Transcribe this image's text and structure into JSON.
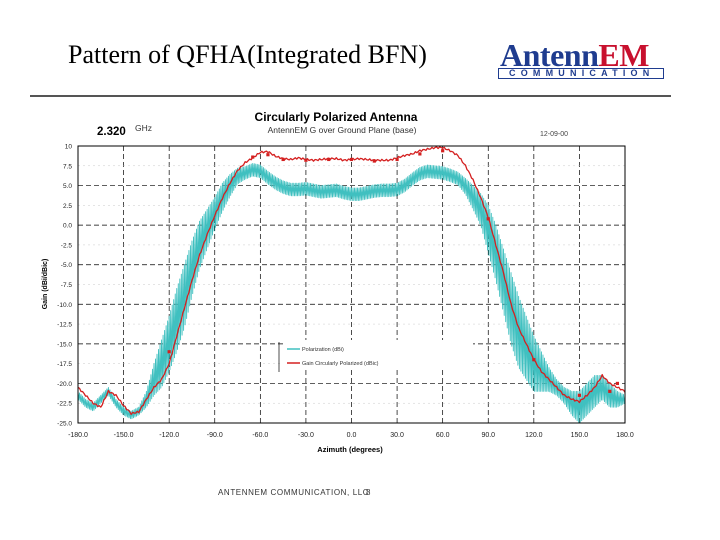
{
  "slide": {
    "title": "Pattern of QFHA(Integrated BFN)",
    "logo_text_a": "Antenn",
    "logo_text_b": "EM",
    "logo_sub": "COMMUNICATION",
    "footer_org": "ANTENNEM COMMUNICATION, LLC",
    "footer_page": "8"
  },
  "chart_data": {
    "type": "line",
    "title": "Circularly Polarized Antenna",
    "subtitle": "AntennEM G over Ground Plane (base)",
    "frequency_value": "2.320",
    "frequency_unit": "GHz",
    "date_label": "12-09-00",
    "xlabel": "Azimuth (degrees)",
    "ylabel": "Gain (dBi/dBic)",
    "xlim": [
      -180,
      180
    ],
    "ylim": [
      -25,
      10
    ],
    "grid": true,
    "x_ticks": [
      "-180.0",
      "-150.0",
      "-120.0",
      "-90.0",
      "-60.0",
      "-30.0",
      "0.0",
      "30.0",
      "60.0",
      "90.0",
      "120.0",
      "150.0",
      "180.0"
    ],
    "y_ticks": [
      "10",
      "7.5",
      "5.0",
      "2.5",
      "0.0",
      "-2.5",
      "-5.0",
      "-7.5",
      "-10.0",
      "-12.5",
      "-15.0",
      "-17.5",
      "-20.0",
      "-22.5",
      "-25.0"
    ],
    "legend_position": "center-right",
    "series": [
      {
        "name": "Polarization (dBi)",
        "color": "#40c0c0",
        "style": "oscillating",
        "x": [
          -180,
          -175,
          -170,
          -165,
          -160,
          -155,
          -150,
          -145,
          -140,
          -135,
          -130,
          -125,
          -120,
          -115,
          -110,
          -105,
          -100,
          -95,
          -90,
          -85,
          -80,
          -75,
          -70,
          -65,
          -60,
          -55,
          -50,
          -45,
          -40,
          -35,
          -30,
          -25,
          -20,
          -15,
          -10,
          -5,
          0,
          5,
          10,
          15,
          20,
          25,
          30,
          35,
          40,
          45,
          50,
          55,
          60,
          65,
          70,
          75,
          80,
          85,
          90,
          95,
          100,
          105,
          110,
          115,
          120,
          125,
          130,
          135,
          140,
          145,
          150,
          155,
          160,
          165,
          170,
          175,
          180
        ],
        "y": [
          -21.5,
          -22.5,
          -23.0,
          -22.0,
          -21.0,
          -22.5,
          -23.5,
          -24.0,
          -23.5,
          -22.0,
          -19.5,
          -17.5,
          -15.0,
          -12.0,
          -9.0,
          -5.5,
          -2.5,
          -0.5,
          1.5,
          3.5,
          5.0,
          6.2,
          6.6,
          7.0,
          6.8,
          6.0,
          5.3,
          4.8,
          4.5,
          4.5,
          4.6,
          4.4,
          4.2,
          4.3,
          4.4,
          4.1,
          3.9,
          3.9,
          4.1,
          4.3,
          4.4,
          4.4,
          4.5,
          5.0,
          5.8,
          6.5,
          6.8,
          6.7,
          6.6,
          6.3,
          5.9,
          4.9,
          3.5,
          2.0,
          -0.5,
          -3.5,
          -7.0,
          -10.5,
          -13.5,
          -15.5,
          -17.5,
          -18.5,
          -19.5,
          -20.5,
          -21.5,
          -22.5,
          -23.0,
          -22.0,
          -21.0,
          -20.5,
          -21.5,
          -22.0,
          -22.0
        ],
        "ripple": [
          0.5,
          0.5,
          0.5,
          0.5,
          0.5,
          0.5,
          0.5,
          0.5,
          0.5,
          1.0,
          2.0,
          3.0,
          3.5,
          4.0,
          4.0,
          3.5,
          3.0,
          2.5,
          2.0,
          1.8,
          1.4,
          1.0,
          0.8,
          0.8,
          0.8,
          0.8,
          0.8,
          0.8,
          0.8,
          0.8,
          0.8,
          0.8,
          0.8,
          0.8,
          0.8,
          0.8,
          0.8,
          0.8,
          0.8,
          0.8,
          0.8,
          0.8,
          0.8,
          0.8,
          0.8,
          0.8,
          0.8,
          0.8,
          0.8,
          0.8,
          0.8,
          1.0,
          1.5,
          2.0,
          3.0,
          3.5,
          4.0,
          4.5,
          4.5,
          4.0,
          3.5,
          2.5,
          1.5,
          1.0,
          1.0,
          1.5,
          2.0,
          2.0,
          2.0,
          1.5,
          1.5,
          1.0,
          0.5
        ]
      },
      {
        "name": "Gain Circularly Polarized (dBic)",
        "color": "#d42020",
        "style": "smooth",
        "x": [
          -180,
          -175,
          -170,
          -165,
          -160,
          -155,
          -150,
          -145,
          -140,
          -135,
          -130,
          -125,
          -120,
          -115,
          -110,
          -105,
          -100,
          -95,
          -90,
          -85,
          -80,
          -75,
          -70,
          -65,
          -60,
          -55,
          -50,
          -45,
          -40,
          -35,
          -30,
          -25,
          -20,
          -15,
          -10,
          -5,
          0,
          5,
          10,
          15,
          20,
          25,
          30,
          35,
          40,
          45,
          50,
          55,
          60,
          65,
          70,
          75,
          80,
          85,
          90,
          95,
          100,
          105,
          110,
          115,
          120,
          125,
          130,
          135,
          140,
          145,
          150,
          155,
          160,
          165,
          170,
          175,
          180
        ],
        "y": [
          -20.5,
          -21.5,
          -22.5,
          -23.0,
          -21.0,
          -21.5,
          -22.8,
          -23.8,
          -23.6,
          -22.0,
          -20.5,
          -19.5,
          -17.5,
          -14.0,
          -10.5,
          -7.0,
          -3.8,
          -1.2,
          1.2,
          3.4,
          5.3,
          6.9,
          7.9,
          8.5,
          9.2,
          9.3,
          8.7,
          8.4,
          8.3,
          8.5,
          8.3,
          8.2,
          8.3,
          8.4,
          8.4,
          8.2,
          8.3,
          8.4,
          8.3,
          8.2,
          8.2,
          8.2,
          8.5,
          8.8,
          9.0,
          9.4,
          9.6,
          9.8,
          9.8,
          9.4,
          8.8,
          7.5,
          5.7,
          3.5,
          1.0,
          -2.5,
          -6.0,
          -10.0,
          -13.0,
          -15.0,
          -17.0,
          -18.5,
          -19.5,
          -20.5,
          -21.5,
          -22.0,
          -22.3,
          -21.5,
          -20.5,
          -19.0,
          -20.0,
          -20.5,
          -21.0
        ],
        "markers": [
          [
            -120,
            -16.0
          ],
          [
            -65,
            8.6
          ],
          [
            -55,
            8.9
          ],
          [
            -45,
            8.3
          ],
          [
            -30,
            8.2
          ],
          [
            -15,
            8.3
          ],
          [
            0,
            8.3
          ],
          [
            15,
            8.1
          ],
          [
            30,
            8.3
          ],
          [
            45,
            9.0
          ],
          [
            60,
            9.4
          ],
          [
            90,
            0.8
          ],
          [
            120,
            -17.0
          ],
          [
            150,
            -21.5
          ],
          [
            170,
            -21.0
          ],
          [
            175,
            -20.0
          ]
        ]
      }
    ]
  }
}
